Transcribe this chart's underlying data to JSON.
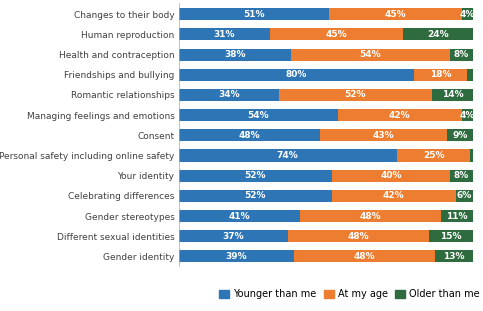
{
  "categories": [
    "Changes to their body",
    "Human reproduction",
    "Health and contraception",
    "Friendships and bullying",
    "Romantic relationships",
    "Managing feelings and emotions",
    "Consent",
    "Personal safety including online safety",
    "Your identity",
    "Celebrating differences",
    "Gender stereotypes",
    "Different sexual identities",
    "Gender identity"
  ],
  "younger": [
    51,
    31,
    38,
    80,
    34,
    54,
    48,
    74,
    52,
    52,
    41,
    37,
    39
  ],
  "at_my_age": [
    45,
    45,
    54,
    18,
    52,
    42,
    43,
    25,
    40,
    42,
    48,
    48,
    48
  ],
  "older": [
    4,
    24,
    8,
    2,
    14,
    4,
    9,
    2,
    8,
    6,
    11,
    15,
    13
  ],
  "color_younger": "#2E75B6",
  "color_at_my_age": "#ED7D31",
  "color_older": "#2E6B3E",
  "bar_height": 0.6,
  "label_fontsize": 6.5,
  "tick_fontsize": 6.5,
  "legend_fontsize": 7,
  "figure_bg": "#FFFFFF"
}
